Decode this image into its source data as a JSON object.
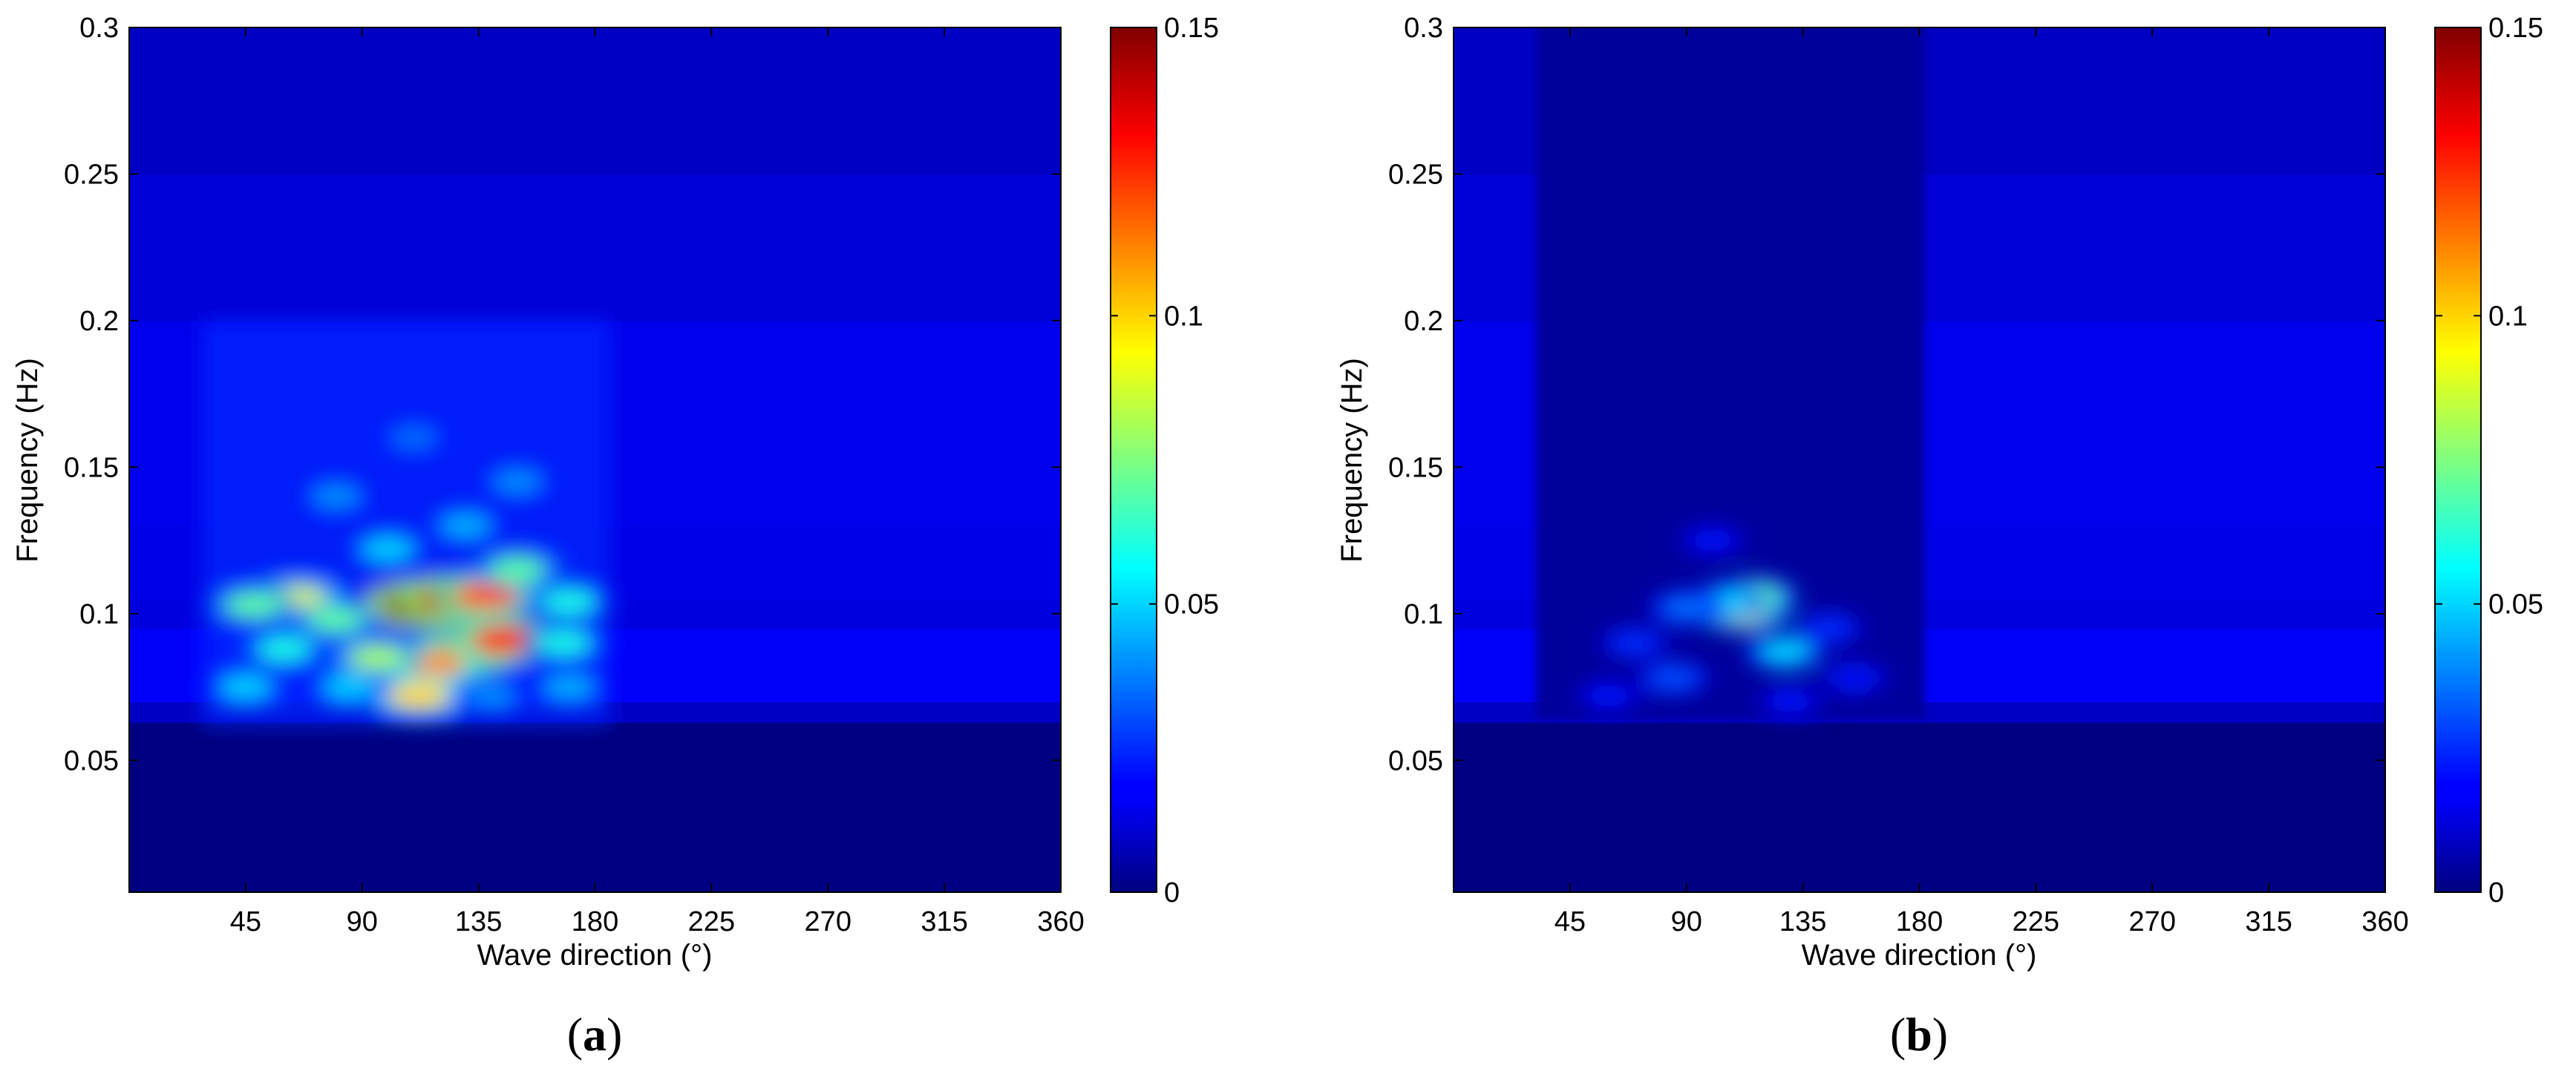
{
  "panels": [
    {
      "label": "a",
      "xlabel": "Wave direction (°)",
      "ylabel": "Frequency (Hz)",
      "xticks": [
        "45",
        "90",
        "135",
        "180",
        "225",
        "270",
        "315",
        "360"
      ],
      "yticks": [
        "0.05",
        "0.1",
        "0.15",
        "0.2",
        "0.25",
        "0.3"
      ],
      "colorbar_ticks": [
        "0",
        "0.05",
        "0.1",
        "0.15"
      ]
    },
    {
      "label": "b",
      "xlabel": "Wave direction (°)",
      "ylabel": "Frequency (Hz)",
      "xticks": [
        "45",
        "90",
        "135",
        "180",
        "225",
        "270",
        "315",
        "360"
      ],
      "yticks": [
        "0.05",
        "0.1",
        "0.15",
        "0.2",
        "0.25",
        "0.3"
      ],
      "colorbar_ticks": [
        "0",
        "0.05",
        "0.1",
        "0.15"
      ]
    }
  ],
  "chart_data": [
    {
      "type": "heatmap",
      "panel": "a",
      "xlabel": "Wave direction (°)",
      "ylabel": "Frequency (Hz)",
      "xlim": [
        0,
        360
      ],
      "ylim": [
        0.005,
        0.3
      ],
      "x_ticks": [
        45,
        90,
        135,
        180,
        225,
        270,
        315,
        360
      ],
      "y_ticks": [
        0.05,
        0.1,
        0.15,
        0.2,
        0.25,
        0.3
      ],
      "colormap": "jet",
      "clim": [
        0,
        0.15
      ],
      "colorbar_ticks": [
        0,
        0.05,
        0.1,
        0.15
      ],
      "background_by_frequency": [
        {
          "f_min": 0.005,
          "f_max": 0.063,
          "value": 0.0
        },
        {
          "f_min": 0.063,
          "f_max": 0.07,
          "value": 0.01
        },
        {
          "f_min": 0.07,
          "f_max": 0.095,
          "value": 0.018
        },
        {
          "f_min": 0.095,
          "f_max": 0.105,
          "value": 0.014
        },
        {
          "f_min": 0.105,
          "f_max": 0.13,
          "value": 0.015
        },
        {
          "f_min": 0.13,
          "f_max": 0.2,
          "value": 0.016
        },
        {
          "f_min": 0.2,
          "f_max": 0.25,
          "value": 0.013
        },
        {
          "f_min": 0.25,
          "f_max": 0.3,
          "value": 0.01
        }
      ],
      "active_direction_range": [
        28,
        186
      ],
      "active_frequency_range": [
        0.062,
        0.2
      ],
      "peaks": [
        {
          "dir": 112,
          "freq": 0.103,
          "value": 0.15
        },
        {
          "dir": 125,
          "freq": 0.105,
          "value": 0.14
        },
        {
          "dir": 138,
          "freq": 0.106,
          "value": 0.12
        },
        {
          "dir": 130,
          "freq": 0.087,
          "value": 0.13
        },
        {
          "dir": 145,
          "freq": 0.091,
          "value": 0.13
        },
        {
          "dir": 118,
          "freq": 0.083,
          "value": 0.11
        },
        {
          "dir": 112,
          "freq": 0.072,
          "value": 0.1
        },
        {
          "dir": 65,
          "freq": 0.105,
          "value": 0.09
        },
        {
          "dir": 48,
          "freq": 0.103,
          "value": 0.07
        },
        {
          "dir": 96,
          "freq": 0.085,
          "value": 0.08
        },
        {
          "dir": 80,
          "freq": 0.098,
          "value": 0.07
        },
        {
          "dir": 168,
          "freq": 0.09,
          "value": 0.06
        },
        {
          "dir": 150,
          "freq": 0.115,
          "value": 0.07
        },
        {
          "dir": 170,
          "freq": 0.104,
          "value": 0.06
        },
        {
          "dir": 60,
          "freq": 0.088,
          "value": 0.06
        },
        {
          "dir": 45,
          "freq": 0.075,
          "value": 0.05
        },
        {
          "dir": 100,
          "freq": 0.122,
          "value": 0.05
        },
        {
          "dir": 130,
          "freq": 0.13,
          "value": 0.045
        },
        {
          "dir": 80,
          "freq": 0.14,
          "value": 0.04
        },
        {
          "dir": 150,
          "freq": 0.145,
          "value": 0.04
        },
        {
          "dir": 110,
          "freq": 0.16,
          "value": 0.035
        },
        {
          "dir": 170,
          "freq": 0.075,
          "value": 0.045
        },
        {
          "dir": 85,
          "freq": 0.075,
          "value": 0.05
        },
        {
          "dir": 140,
          "freq": 0.072,
          "value": 0.04
        }
      ]
    },
    {
      "type": "heatmap",
      "panel": "b",
      "xlabel": "Wave direction (°)",
      "ylabel": "Frequency (Hz)",
      "xlim": [
        0,
        360
      ],
      "ylim": [
        0.005,
        0.3
      ],
      "x_ticks": [
        45,
        90,
        135,
        180,
        225,
        270,
        315,
        360
      ],
      "y_ticks": [
        0.05,
        0.1,
        0.15,
        0.2,
        0.25,
        0.3
      ],
      "colormap": "jet",
      "clim": [
        0,
        0.15
      ],
      "colorbar_ticks": [
        0,
        0.05,
        0.1,
        0.15
      ],
      "background_by_frequency": [
        {
          "f_min": 0.005,
          "f_max": 0.063,
          "value": 0.0
        },
        {
          "f_min": 0.063,
          "f_max": 0.07,
          "value": 0.01
        },
        {
          "f_min": 0.07,
          "f_max": 0.095,
          "value": 0.018
        },
        {
          "f_min": 0.095,
          "f_max": 0.105,
          "value": 0.014
        },
        {
          "f_min": 0.105,
          "f_max": 0.13,
          "value": 0.015
        },
        {
          "f_min": 0.13,
          "f_max": 0.2,
          "value": 0.016
        },
        {
          "f_min": 0.2,
          "f_max": 0.25,
          "value": 0.013
        },
        {
          "f_min": 0.25,
          "f_max": 0.3,
          "value": 0.01
        }
      ],
      "dark_direction_band": {
        "dir_min": 32,
        "dir_max": 182,
        "value": 0.004
      },
      "active_direction_range": [
        32,
        182
      ],
      "active_frequency_range": [
        0.062,
        0.17
      ],
      "peaks": [
        {
          "dir": 111,
          "freq": 0.101,
          "value": 0.09
        },
        {
          "dir": 116,
          "freq": 0.106,
          "value": 0.07
        },
        {
          "dir": 105,
          "freq": 0.104,
          "value": 0.05
        },
        {
          "dir": 128,
          "freq": 0.087,
          "value": 0.05
        },
        {
          "dir": 90,
          "freq": 0.102,
          "value": 0.035
        },
        {
          "dir": 85,
          "freq": 0.078,
          "value": 0.03
        },
        {
          "dir": 145,
          "freq": 0.095,
          "value": 0.025
        },
        {
          "dir": 70,
          "freq": 0.09,
          "value": 0.025
        },
        {
          "dir": 155,
          "freq": 0.078,
          "value": 0.022
        },
        {
          "dir": 100,
          "freq": 0.125,
          "value": 0.02
        },
        {
          "dir": 60,
          "freq": 0.072,
          "value": 0.02
        },
        {
          "dir": 130,
          "freq": 0.07,
          "value": 0.02
        }
      ]
    }
  ]
}
